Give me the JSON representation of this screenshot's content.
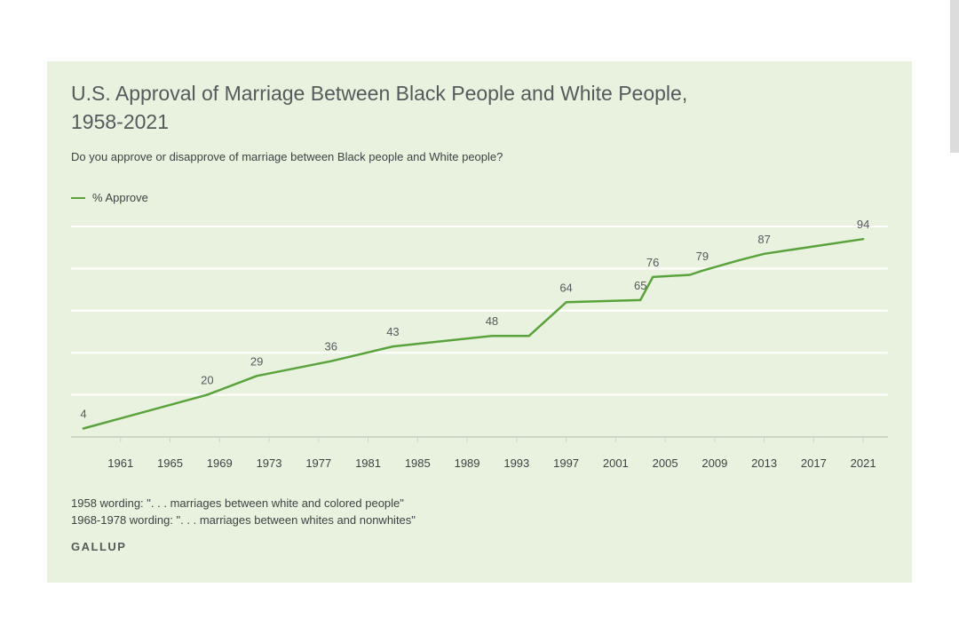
{
  "chart_data": {
    "type": "line",
    "title": "U.S. Approval of Marriage Between Black People and White People, 1958-2021",
    "subtitle": "Do you approve or disapprove of marriage between Black people and White people?",
    "series": [
      {
        "name": "% Approve",
        "color": "#5aa23c",
        "x": [
          1958,
          1968,
          1972,
          1978,
          1983,
          1991,
          1994,
          1997,
          2003,
          2004,
          2007,
          2008,
          2011,
          2013,
          2021
        ],
        "values": [
          4,
          20,
          29,
          36,
          43,
          48,
          48,
          64,
          65,
          76,
          77,
          79,
          84,
          87,
          94
        ],
        "labeled": [
          true,
          true,
          true,
          true,
          true,
          true,
          false,
          true,
          true,
          true,
          false,
          true,
          false,
          true,
          true
        ],
        "labels": [
          "4",
          "20",
          "29",
          "36",
          "43",
          "48",
          "",
          "64",
          "65",
          "76",
          "",
          "79",
          "",
          "87",
          "94"
        ]
      }
    ],
    "x_ticks": [
      1961,
      1965,
      1969,
      1973,
      1977,
      1981,
      1985,
      1989,
      1993,
      1997,
      2001,
      2005,
      2009,
      2013,
      2017,
      2021
    ],
    "xlim": [
      1957,
      2023
    ],
    "ylim": [
      0,
      100
    ],
    "y_gridlines": [
      20,
      40,
      60,
      80,
      100
    ],
    "grid": true,
    "legend_position": "top-left",
    "colors": {
      "background": "#e9f2df",
      "line": "#5aa23c",
      "gridline": "#ffffff",
      "axis": "#cfd6c8"
    }
  },
  "notes": [
    "1958 wording: \". . . marriages between white and colored people\"",
    "1968-1978 wording: \". . . marriages between whites and nonwhites\""
  ],
  "source": "GALLUP"
}
